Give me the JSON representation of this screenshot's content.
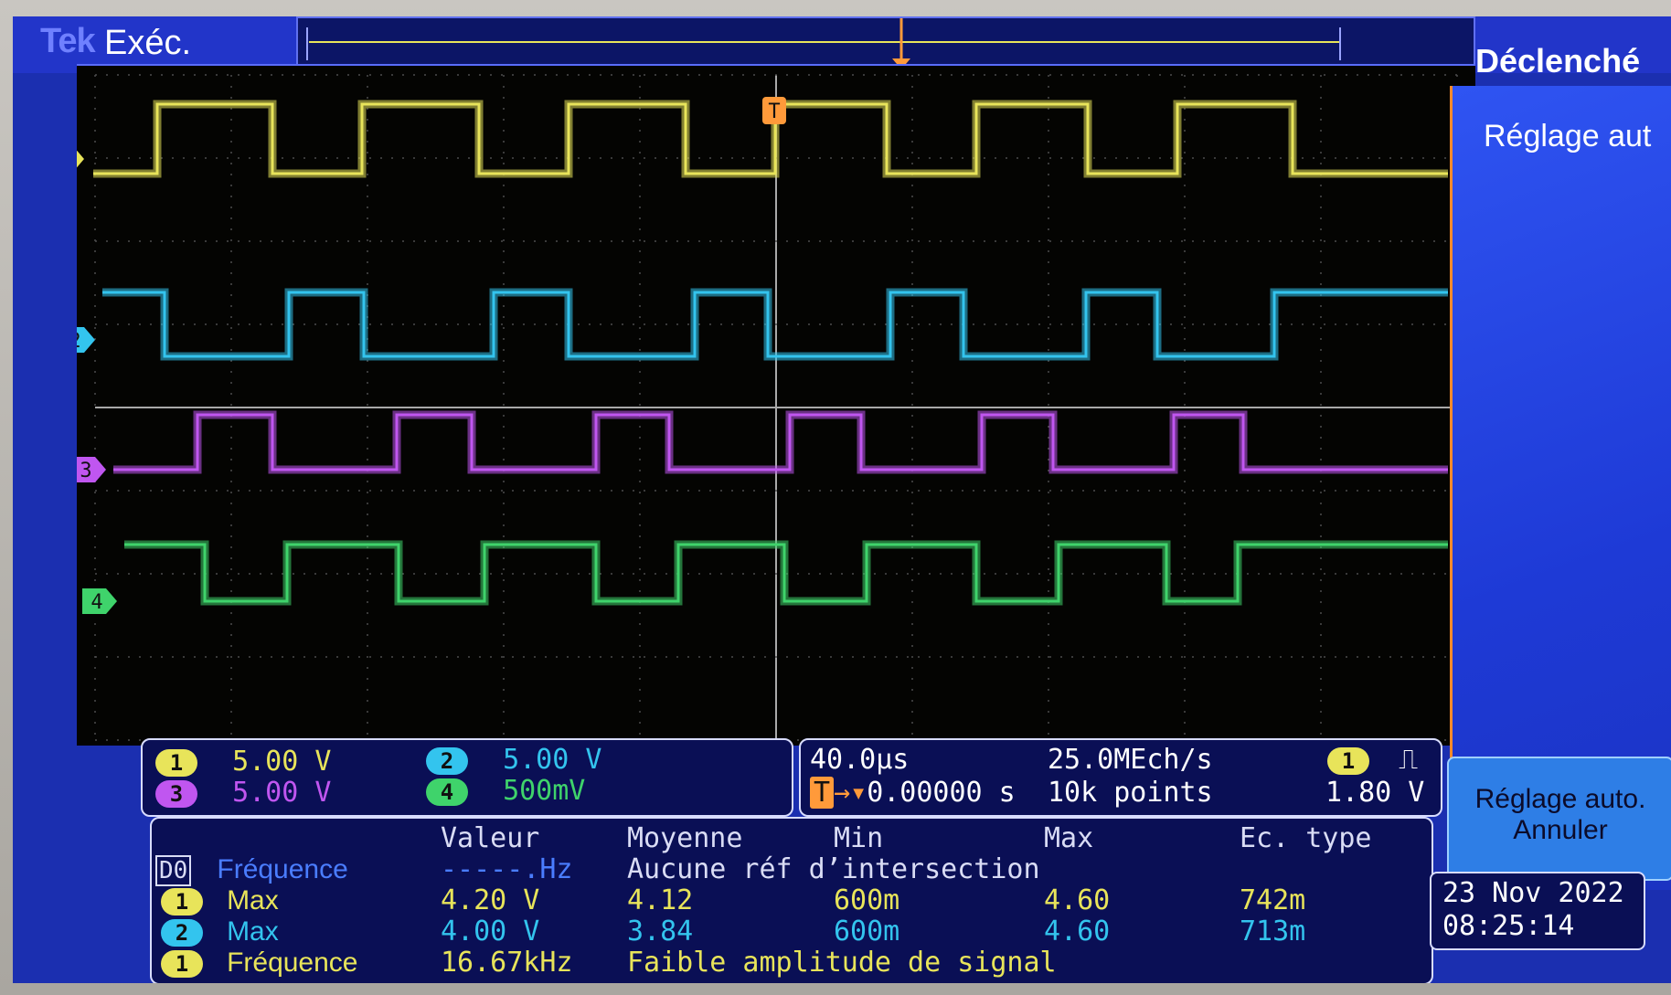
{
  "header": {
    "brand": "Tek",
    "run_state": "Exéc.",
    "trigger_state": "Déclenché"
  },
  "side_menu": {
    "title": "Réglage aut",
    "button_line1": "Réglage auto.",
    "button_line2": "Annuler"
  },
  "channels": [
    {
      "id": "1",
      "label": "1",
      "scale": "5.00 V",
      "color": "#e8e45a"
    },
    {
      "id": "2",
      "label": "2",
      "scale": "5.00 V",
      "color": "#33c4ee"
    },
    {
      "id": "3",
      "label": "3",
      "scale": "5.00 V",
      "color": "#c056f0"
    },
    {
      "id": "4",
      "label": "4",
      "scale": "500mV",
      "color": "#3fd36b"
    }
  ],
  "timebase": {
    "time_per_div": "40.0µs",
    "sample_rate": "25.0MEch/s",
    "trigger_pos": "0.00000 s",
    "record_length": "10k points",
    "trigger_source": "1",
    "trigger_level": "1.80 V",
    "trigger_marker": "T"
  },
  "measurements": {
    "headers": [
      "Valeur",
      "Moyenne",
      "Min",
      "Max",
      "Ec. type"
    ],
    "rows": [
      {
        "source": "D0",
        "name": "Fréquence",
        "value": "-----.Hz",
        "note": "Aucune réf d’intersection"
      },
      {
        "source": "1",
        "name": "Max",
        "value": "4.20 V",
        "mean": "4.12",
        "min": "600m",
        "max": "4.60",
        "std": "742m"
      },
      {
        "source": "2",
        "name": "Max",
        "value": "4.00 V",
        "mean": "3.84",
        "min": "600m",
        "max": "4.60",
        "std": "713m"
      },
      {
        "source": "1",
        "name": "Fréquence",
        "value": "16.67kHz",
        "note": "Faible amplitude de signal"
      }
    ]
  },
  "date": "23 Nov 2022",
  "time": "08:25:14"
}
